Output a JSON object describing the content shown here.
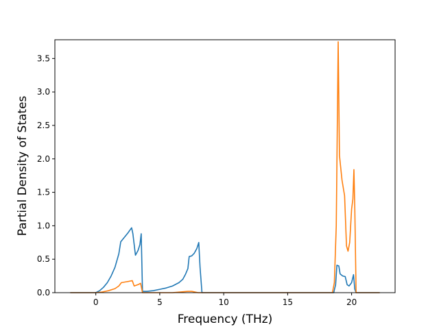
{
  "chart_data": {
    "type": "line",
    "title": "",
    "xlabel": "Frequency (THz)",
    "ylabel": "Partial Density of States",
    "xlim": [
      -3.2,
      23.4
    ],
    "ylim": [
      0,
      3.78
    ],
    "xticks": [
      0,
      5,
      10,
      15,
      20
    ],
    "yticks": [
      0.0,
      0.5,
      1.0,
      1.5,
      2.0,
      2.5,
      3.0,
      3.5
    ],
    "ytick_labels": [
      "0.0",
      "0.5",
      "1.0",
      "1.5",
      "2.0",
      "2.5",
      "3.0",
      "3.5"
    ],
    "grid": false,
    "legend": "none",
    "series": [
      {
        "color": "#1f77b4",
        "x": [
          -2.0,
          -1.0,
          0.0,
          0.3,
          0.6,
          0.9,
          1.2,
          1.5,
          1.8,
          1.95,
          2.2,
          2.5,
          2.8,
          2.9,
          3.1,
          3.3,
          3.45,
          3.55,
          3.65,
          4.0,
          4.5,
          5.0,
          5.5,
          6.0,
          6.5,
          6.8,
          7.0,
          7.2,
          7.3,
          7.5,
          7.7,
          7.9,
          8.05,
          8.15,
          8.3,
          10.0,
          15.0,
          18.0,
          18.6,
          18.75,
          18.85,
          19.0,
          19.1,
          19.3,
          19.5,
          19.65,
          19.8,
          20.0,
          20.15,
          20.25,
          20.35,
          21.0,
          22.2
        ],
        "values": [
          0.0,
          0.0,
          0.0,
          0.03,
          0.08,
          0.15,
          0.25,
          0.38,
          0.58,
          0.76,
          0.82,
          0.89,
          0.97,
          0.88,
          0.56,
          0.63,
          0.72,
          0.88,
          0.02,
          0.02,
          0.03,
          0.05,
          0.07,
          0.1,
          0.15,
          0.2,
          0.27,
          0.36,
          0.54,
          0.55,
          0.59,
          0.66,
          0.75,
          0.38,
          0.0,
          0.0,
          0.0,
          0.0,
          0.0,
          0.12,
          0.41,
          0.4,
          0.28,
          0.25,
          0.24,
          0.12,
          0.1,
          0.15,
          0.27,
          0.05,
          0.0,
          0.0,
          0.0
        ]
      },
      {
        "color": "#ff7f0e",
        "x": [
          -2.0,
          -1.0,
          0.0,
          0.5,
          1.0,
          1.5,
          1.8,
          2.0,
          2.3,
          2.6,
          2.85,
          3.0,
          3.3,
          3.5,
          3.6,
          3.65,
          4.5,
          6.0,
          7.2,
          7.5,
          8.0,
          10.0,
          15.0,
          18.5,
          18.65,
          18.8,
          18.95,
          19.05,
          19.25,
          19.45,
          19.6,
          19.72,
          19.85,
          20.0,
          20.1,
          20.18,
          20.25,
          20.35,
          21.0,
          22.2
        ],
        "values": [
          0.0,
          0.0,
          0.0,
          0.01,
          0.03,
          0.06,
          0.1,
          0.15,
          0.16,
          0.17,
          0.18,
          0.1,
          0.12,
          0.14,
          0.05,
          0.0,
          0.0,
          0.0,
          0.02,
          0.02,
          0.0,
          0.0,
          0.0,
          0.0,
          0.15,
          1.0,
          3.75,
          2.05,
          1.68,
          1.45,
          0.7,
          0.62,
          0.75,
          1.25,
          1.4,
          1.84,
          1.25,
          0.0,
          0.0,
          0.0
        ]
      }
    ]
  }
}
